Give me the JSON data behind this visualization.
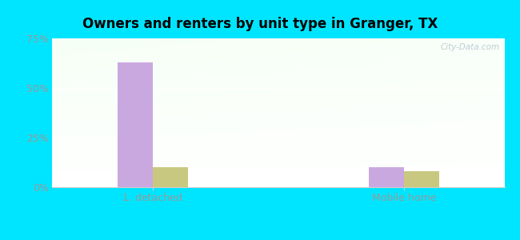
{
  "title": "Owners and renters by unit type in Granger, TX",
  "categories": [
    "1, detached",
    "Mobile home"
  ],
  "owner_values": [
    63,
    10
  ],
  "renter_values": [
    10,
    8
  ],
  "owner_color": "#c9a8e0",
  "renter_color": "#c8c880",
  "ylim": [
    0,
    75
  ],
  "yticks": [
    0,
    25,
    50,
    75
  ],
  "ytick_labels": [
    "0%",
    "25%",
    "50%",
    "75%"
  ],
  "bar_width": 0.28,
  "outer_background": "#00e5ff",
  "watermark": "City-Data.com",
  "tick_color": "#aaaaaa",
  "label_color": "#999999"
}
